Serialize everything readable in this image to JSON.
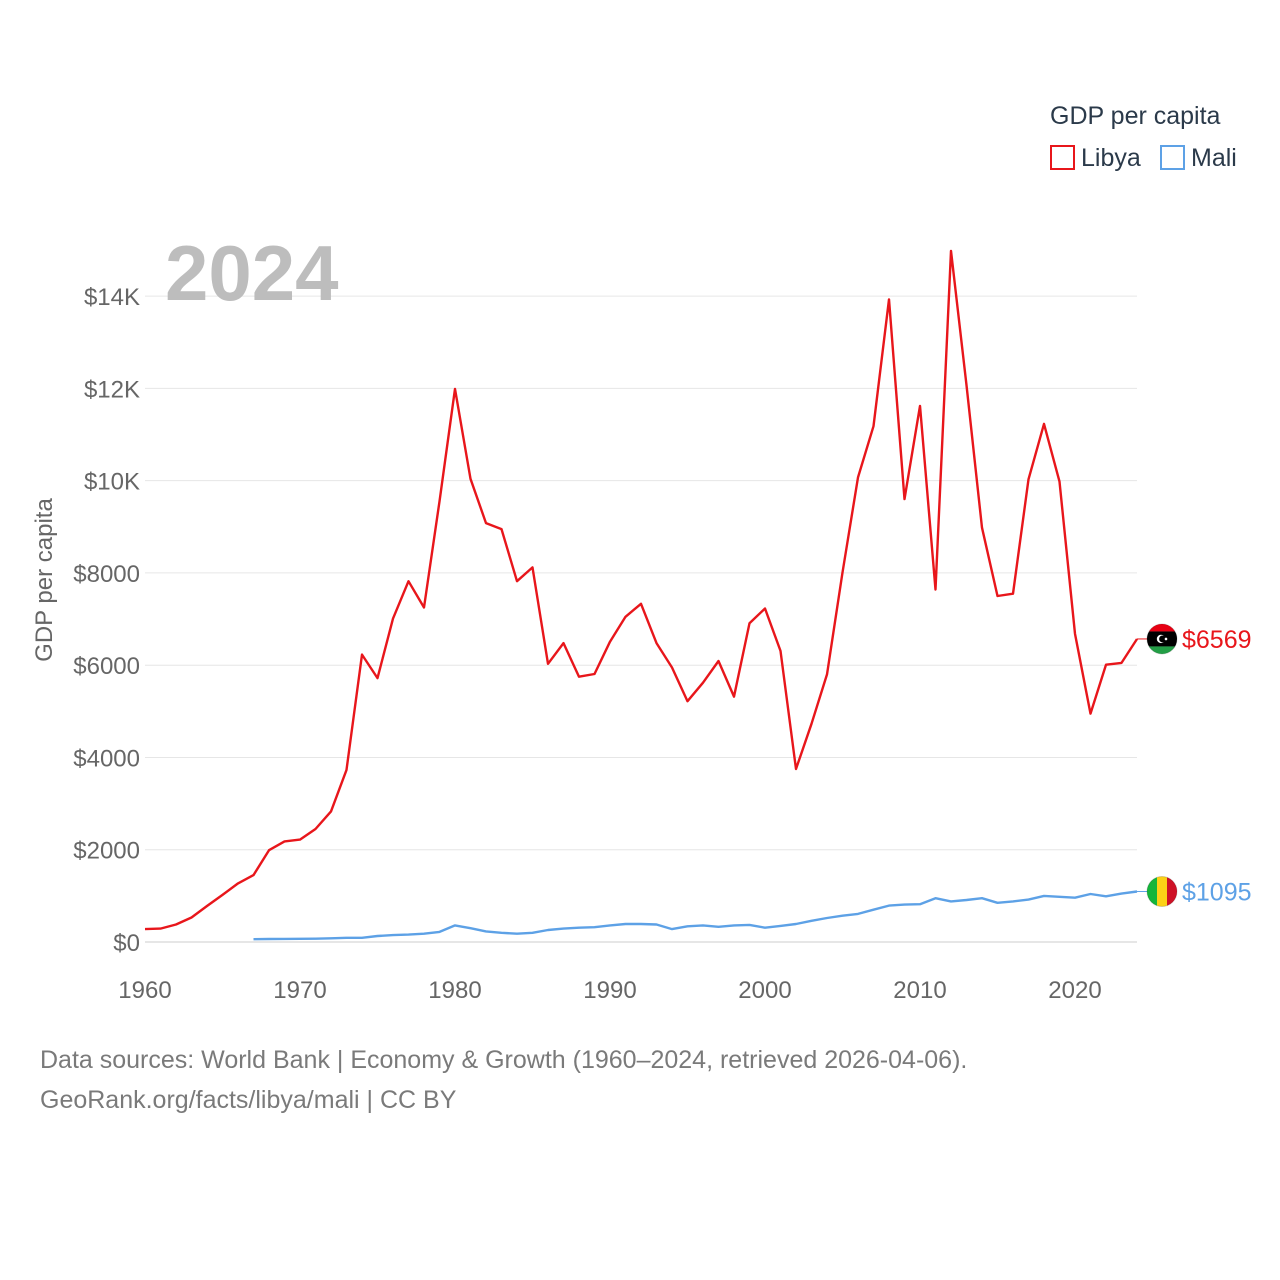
{
  "chart_data": {
    "type": "line",
    "year_label": "2024",
    "ylabel": "GDP per capita",
    "legend_title": "GDP per capita",
    "legend_position": "top-right",
    "ylim": [
      0,
      15000
    ],
    "xlim": [
      1960,
      2024
    ],
    "y_ticks": [
      {
        "value": 0,
        "label": "$0"
      },
      {
        "value": 2000,
        "label": "$2000"
      },
      {
        "value": 4000,
        "label": "$4000"
      },
      {
        "value": 6000,
        "label": "$6000"
      },
      {
        "value": 8000,
        "label": "$8000"
      },
      {
        "value": 10000,
        "label": "$10K"
      },
      {
        "value": 12000,
        "label": "$12K"
      },
      {
        "value": 14000,
        "label": "$14K"
      }
    ],
    "x_ticks": [
      {
        "value": 1960,
        "label": "1960"
      },
      {
        "value": 1970,
        "label": "1970"
      },
      {
        "value": 1980,
        "label": "1980"
      },
      {
        "value": 1990,
        "label": "1990"
      },
      {
        "value": 2000,
        "label": "2000"
      },
      {
        "value": 2010,
        "label": "2010"
      },
      {
        "value": 2020,
        "label": "2020"
      }
    ],
    "series": [
      {
        "name": "Libya",
        "color": "#e8161b",
        "flag_icon": "libya-flag-icon",
        "end_label": "$6569",
        "x": [
          1960,
          1961,
          1962,
          1963,
          1964,
          1965,
          1966,
          1967,
          1968,
          1969,
          1970,
          1971,
          1972,
          1973,
          1974,
          1975,
          1976,
          1977,
          1978,
          1979,
          1980,
          1981,
          1982,
          1983,
          1984,
          1985,
          1986,
          1987,
          1988,
          1989,
          1990,
          1991,
          1992,
          1993,
          1994,
          1995,
          1996,
          1997,
          1998,
          1999,
          2000,
          2001,
          2002,
          2003,
          2004,
          2005,
          2006,
          2007,
          2008,
          2009,
          2010,
          2011,
          2012,
          2013,
          2014,
          2015,
          2016,
          2017,
          2018,
          2019,
          2020,
          2021,
          2022,
          2023,
          2024
        ],
        "values": [
          280,
          290,
          380,
          530,
          780,
          1020,
          1270,
          1450,
          1990,
          2180,
          2220,
          2450,
          2830,
          3730,
          6230,
          5720,
          7010,
          7820,
          7250,
          9550,
          11990,
          10040,
          9080,
          8950,
          7820,
          8120,
          6030,
          6480,
          5750,
          5810,
          6510,
          7050,
          7330,
          6480,
          5950,
          5220,
          5620,
          6090,
          5320,
          6910,
          7230,
          6310,
          3750,
          4730,
          5800,
          8010,
          10070,
          11180,
          13930,
          9600,
          11620,
          7640,
          14980,
          12070,
          8980,
          7500,
          7550,
          10030,
          11230,
          9980,
          6680,
          4950,
          6010,
          6050,
          6569
        ]
      },
      {
        "name": "Mali",
        "color": "#5da1e6",
        "flag_icon": "mali-flag-icon",
        "end_label": "$1095",
        "x": [
          1967,
          1968,
          1969,
          1970,
          1971,
          1972,
          1973,
          1974,
          1975,
          1976,
          1977,
          1978,
          1979,
          1980,
          1981,
          1982,
          1983,
          1984,
          1985,
          1986,
          1987,
          1988,
          1989,
          1990,
          1991,
          1992,
          1993,
          1994,
          1995,
          1996,
          1997,
          1998,
          1999,
          2000,
          2001,
          2002,
          2003,
          2004,
          2005,
          2006,
          2007,
          2008,
          2009,
          2010,
          2011,
          2012,
          2013,
          2014,
          2015,
          2016,
          2017,
          2018,
          2019,
          2020,
          2021,
          2022,
          2023,
          2024
        ],
        "values": [
          60,
          65,
          68,
          70,
          72,
          80,
          90,
          90,
          130,
          150,
          160,
          180,
          220,
          360,
          300,
          230,
          200,
          180,
          200,
          260,
          290,
          310,
          320,
          360,
          390,
          390,
          380,
          280,
          340,
          360,
          330,
          360,
          370,
          310,
          350,
          390,
          460,
          520,
          570,
          610,
          700,
          790,
          810,
          820,
          950,
          880,
          910,
          950,
          850,
          880,
          920,
          1000,
          980,
          960,
          1040,
          990,
          1050,
          1095
        ]
      }
    ]
  },
  "footer": {
    "line1": "Data sources: World Bank | Economy & Growth (1960–2024, retrieved 2026-04-06).",
    "line2": "GeoRank.org/facts/libya/mali | CC BY"
  }
}
